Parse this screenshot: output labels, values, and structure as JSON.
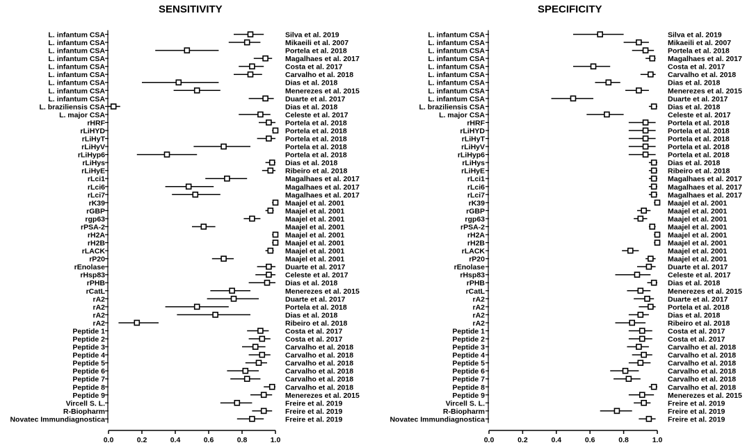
{
  "chart_data": [
    {
      "type": "forest",
      "title": "SENSITIVITY",
      "xlim": [
        0,
        1
      ],
      "xticks": [
        "0.0",
        "0.2",
        "0.4",
        "0.6",
        "0.8",
        "1.0"
      ],
      "rows": [
        {
          "label": "L. infantum CSA",
          "study": "Silva et al. 2019",
          "est": 0.85,
          "lo": 0.75,
          "hi": 0.93
        },
        {
          "label": "L. infantum CSA",
          "study": "Mikaeili et al. 2007",
          "est": 0.83,
          "lo": 0.72,
          "hi": 0.91
        },
        {
          "label": "L. infantum CSA",
          "study": "Portela et al. 2018",
          "est": 0.47,
          "lo": 0.28,
          "hi": 0.66
        },
        {
          "label": "L. infantum CSA",
          "study": "Magalhaes et al. 2017",
          "est": 0.94,
          "lo": 0.87,
          "hi": 0.98
        },
        {
          "label": "L. infantum CSA",
          "study": "Costa et al. 2017",
          "est": 0.86,
          "lo": 0.78,
          "hi": 0.93
        },
        {
          "label": "L. infantum CSA",
          "study": "Carvalho et al. 2018",
          "est": 0.85,
          "lo": 0.75,
          "hi": 0.92
        },
        {
          "label": "L. infantum CSA",
          "study": "Dias et al. 2018",
          "est": 0.42,
          "lo": 0.2,
          "hi": 0.66
        },
        {
          "label": "L. infantum CSA",
          "study": "Menerezes et al. 2015",
          "est": 0.53,
          "lo": 0.39,
          "hi": 0.67
        },
        {
          "label": "L. infantum CSA",
          "study": "Duarte et al. 2017",
          "est": 0.94,
          "lo": 0.84,
          "hi": 0.99
        },
        {
          "label": "L. braziliensis CSA",
          "study": "Dias et al. 2018",
          "est": 0.03,
          "lo": 0.0,
          "hi": 0.07
        },
        {
          "label": "L. major CSA",
          "study": "Celeste et al. 2017",
          "est": 0.91,
          "lo": 0.78,
          "hi": 0.97
        },
        {
          "label": "rHRF",
          "study": "Portela et al. 2018",
          "est": 0.96,
          "lo": 0.9,
          "hi": 1.0
        },
        {
          "label": "rLiHYD",
          "study": "Portela et al. 2018",
          "est": 1.0,
          "lo": 0.98,
          "hi": 1.0
        },
        {
          "label": "rLiHyT",
          "study": "Portela et al. 2018",
          "est": 0.96,
          "lo": 0.89,
          "hi": 1.0
        },
        {
          "label": "rLiHyV",
          "study": "Portela et al. 2018",
          "est": 0.69,
          "lo": 0.51,
          "hi": 0.85
        },
        {
          "label": "rLiHyp6",
          "study": "Portela et al. 2018",
          "est": 0.35,
          "lo": 0.17,
          "hi": 0.53
        },
        {
          "label": "rLiHys",
          "study": "Dias et al. 2018",
          "est": 0.98,
          "lo": 0.94,
          "hi": 1.0
        },
        {
          "label": "rLiHyE",
          "study": "Ribeiro et al. 2018",
          "est": 0.97,
          "lo": 0.92,
          "hi": 1.0
        },
        {
          "label": "rLci1",
          "study": "Magalhaes et al. 2017",
          "est": 0.71,
          "lo": 0.58,
          "hi": 0.83
        },
        {
          "label": "rLci6",
          "study": "Magalhaes et al. 2017",
          "est": 0.48,
          "lo": 0.34,
          "hi": 0.63
        },
        {
          "label": "rLci7",
          "study": "Magalhaes et al. 2017",
          "est": 0.52,
          "lo": 0.38,
          "hi": 0.67
        },
        {
          "label": "rK39",
          "study": "Maajel et al. 2001",
          "est": 1.0,
          "lo": 0.98,
          "hi": 1.0
        },
        {
          "label": "rGBP",
          "study": "Maajel et al. 2001",
          "est": 0.97,
          "lo": 0.94,
          "hi": 0.99
        },
        {
          "label": "rgp63",
          "study": "Maajel et al. 2001",
          "est": 0.86,
          "lo": 0.81,
          "hi": 0.91
        },
        {
          "label": "rPSA-2",
          "study": "Maajel et al. 2001",
          "est": 0.57,
          "lo": 0.5,
          "hi": 0.64
        },
        {
          "label": "rH2A",
          "study": "Maajel et al. 2001",
          "est": 1.0,
          "lo": 0.98,
          "hi": 1.0
        },
        {
          "label": "rH2B",
          "study": "Maajel et al. 2001",
          "est": 1.0,
          "lo": 0.98,
          "hi": 1.0
        },
        {
          "label": "rLACK",
          "study": "Maajel et al. 2001",
          "est": 0.97,
          "lo": 0.94,
          "hi": 0.99
        },
        {
          "label": "rP20",
          "study": "Maajel et al. 2001",
          "est": 0.69,
          "lo": 0.62,
          "hi": 0.75
        },
        {
          "label": "rEnolase",
          "study": "Duarte et al. 2017",
          "est": 0.96,
          "lo": 0.89,
          "hi": 1.0
        },
        {
          "label": "rHsp83",
          "study": "Celeste et al. 2017",
          "est": 0.96,
          "lo": 0.88,
          "hi": 1.0
        },
        {
          "label": "rPHB",
          "study": "Dias et al. 2018",
          "est": 0.95,
          "lo": 0.84,
          "hi": 1.0
        },
        {
          "label": "rCatL",
          "study": "Menerezes et al. 2015",
          "est": 0.74,
          "lo": 0.61,
          "hi": 0.85
        },
        {
          "label": "rA2",
          "study": "Duarte et al. 2017",
          "est": 0.75,
          "lo": 0.59,
          "hi": 0.9
        },
        {
          "label": "rA2",
          "study": "Portela et al. 2018",
          "est": 0.53,
          "lo": 0.34,
          "hi": 0.72
        },
        {
          "label": "rA2",
          "study": "Dias et al. 2018",
          "est": 0.64,
          "lo": 0.41,
          "hi": 0.85
        },
        {
          "label": "rA2",
          "study": "Ribeiro et al. 2018",
          "est": 0.17,
          "lo": 0.06,
          "hi": 0.3
        },
        {
          "label": "Peptide 1",
          "study": "Costa et al. 2017",
          "est": 0.91,
          "lo": 0.83,
          "hi": 0.96
        },
        {
          "label": "Peptide 2",
          "study": "Costa et al. 2017",
          "est": 0.92,
          "lo": 0.84,
          "hi": 0.97
        },
        {
          "label": "Peptide 3",
          "study": "Carvalho et al. 2018",
          "est": 0.88,
          "lo": 0.8,
          "hi": 0.94
        },
        {
          "label": "Peptide 4",
          "study": "Carvalho et al. 2018",
          "est": 0.92,
          "lo": 0.84,
          "hi": 0.97
        },
        {
          "label": "Peptide 5",
          "study": "Carvalho et al. 2018",
          "est": 0.9,
          "lo": 0.82,
          "hi": 0.95
        },
        {
          "label": "Peptide 6",
          "study": "Carvalho et al. 2018",
          "est": 0.82,
          "lo": 0.71,
          "hi": 0.9
        },
        {
          "label": "Peptide 7",
          "study": "Carvalho et al. 2018",
          "est": 0.83,
          "lo": 0.73,
          "hi": 0.91
        },
        {
          "label": "Peptide 8",
          "study": "Carvalho et al. 2018",
          "est": 0.98,
          "lo": 0.93,
          "hi": 1.0
        },
        {
          "label": "Peptide 9",
          "study": "Menerezes et al. 2015",
          "est": 0.93,
          "lo": 0.85,
          "hi": 0.98
        },
        {
          "label": "Vircell S. L.",
          "study": "Freire et al. 2019",
          "est": 0.77,
          "lo": 0.67,
          "hi": 0.86
        },
        {
          "label": "R-Biopharm",
          "study": "Freire et al. 2019",
          "est": 0.93,
          "lo": 0.86,
          "hi": 0.98
        },
        {
          "label": "Novatec Immundiagnostica",
          "study": "Freire et al. 2019",
          "est": 0.86,
          "lo": 0.77,
          "hi": 0.93
        }
      ]
    },
    {
      "type": "forest",
      "title": "SPECIFICITY",
      "xlim": [
        0,
        1
      ],
      "xticks": [
        "0.0",
        "0.2",
        "0.4",
        "0.6",
        "0.8",
        "1.0"
      ],
      "rows": [
        {
          "label": "L. infantum CSA",
          "study": "Silva et al. 2019",
          "est": 0.66,
          "lo": 0.5,
          "hi": 0.8
        },
        {
          "label": "L. infantum CSA",
          "study": "Mikaeili et al. 2007",
          "est": 0.89,
          "lo": 0.8,
          "hi": 0.95
        },
        {
          "label": "L. infantum CSA",
          "study": "Portela et al. 2018",
          "est": 0.93,
          "lo": 0.85,
          "hi": 0.98
        },
        {
          "label": "L. infantum CSA",
          "study": "Magalhaes et al. 2017",
          "est": 0.97,
          "lo": 0.93,
          "hi": 0.99
        },
        {
          "label": "L. infantum CSA",
          "study": "Costa et al. 2017",
          "est": 0.62,
          "lo": 0.5,
          "hi": 0.72
        },
        {
          "label": "L. infantum CSA",
          "study": "Carvalho et al. 2018",
          "est": 0.96,
          "lo": 0.9,
          "hi": 0.99
        },
        {
          "label": "L. infantum CSA",
          "study": "Dias et al. 2018",
          "est": 0.71,
          "lo": 0.63,
          "hi": 0.78
        },
        {
          "label": "L. infantum CSA",
          "study": "Menerezes et al. 2015",
          "est": 0.89,
          "lo": 0.81,
          "hi": 0.95
        },
        {
          "label": "L. infantum CSA",
          "study": "Duarte et al. 2017",
          "est": 0.5,
          "lo": 0.37,
          "hi": 0.62
        },
        {
          "label": "L. braziliensis CSA",
          "study": "Dias et al. 2018",
          "est": 0.98,
          "lo": 0.95,
          "hi": 1.0
        },
        {
          "label": "L. major CSA",
          "study": "Celeste et al. 2017",
          "est": 0.7,
          "lo": 0.58,
          "hi": 0.8
        },
        {
          "label": "rHRF",
          "study": "Portela et al. 2018",
          "est": 0.93,
          "lo": 0.83,
          "hi": 0.99
        },
        {
          "label": "rLiHYD",
          "study": "Portela et al. 2018",
          "est": 0.93,
          "lo": 0.83,
          "hi": 0.99
        },
        {
          "label": "rLiHyT",
          "study": "Portela et al. 2018",
          "est": 0.93,
          "lo": 0.83,
          "hi": 0.99
        },
        {
          "label": "rLiHyV",
          "study": "Portela et al. 2018",
          "est": 0.93,
          "lo": 0.83,
          "hi": 0.99
        },
        {
          "label": "rLiHyp6",
          "study": "Portela et al. 2018",
          "est": 0.93,
          "lo": 0.83,
          "hi": 0.99
        },
        {
          "label": "rLiHys",
          "study": "Dias et al. 2018",
          "est": 0.98,
          "lo": 0.95,
          "hi": 1.0
        },
        {
          "label": "rLiHyE",
          "study": "Ribeiro et al. 2018",
          "est": 0.98,
          "lo": 0.95,
          "hi": 1.0
        },
        {
          "label": "rLci1",
          "study": "Magalhaes et al. 2017",
          "est": 0.98,
          "lo": 0.95,
          "hi": 1.0
        },
        {
          "label": "rLci6",
          "study": "Magalhaes et al. 2017",
          "est": 0.98,
          "lo": 0.95,
          "hi": 1.0
        },
        {
          "label": "rLci7",
          "study": "Magalhaes et al. 2017",
          "est": 0.98,
          "lo": 0.95,
          "hi": 1.0
        },
        {
          "label": "rK39",
          "study": "Maajel et al. 2001",
          "est": 1.0,
          "lo": 0.98,
          "hi": 1.0
        },
        {
          "label": "rGBP",
          "study": "Maajel et al. 2001",
          "est": 0.92,
          "lo": 0.88,
          "hi": 0.96
        },
        {
          "label": "rgp63",
          "study": "Maajel et al. 2001",
          "est": 0.9,
          "lo": 0.86,
          "hi": 0.94
        },
        {
          "label": "rPSA-2",
          "study": "Maajel et al. 2001",
          "est": 0.97,
          "lo": 0.95,
          "hi": 0.99
        },
        {
          "label": "rH2A",
          "study": "Maajel et al. 2001",
          "est": 1.0,
          "lo": 0.98,
          "hi": 1.0
        },
        {
          "label": "rH2B",
          "study": "Maajel et al. 2001",
          "est": 1.0,
          "lo": 0.98,
          "hi": 1.0
        },
        {
          "label": "rLACK",
          "study": "Maajel et al. 2001",
          "est": 0.84,
          "lo": 0.79,
          "hi": 0.89
        },
        {
          "label": "rP20",
          "study": "Maajel et al. 2001",
          "est": 0.96,
          "lo": 0.93,
          "hi": 0.99
        },
        {
          "label": "rEnolase",
          "study": "Duarte et al. 2017",
          "est": 0.95,
          "lo": 0.88,
          "hi": 0.99
        },
        {
          "label": "rHsp83",
          "study": "Celeste et al. 2017",
          "est": 0.88,
          "lo": 0.75,
          "hi": 0.96
        },
        {
          "label": "rPHB",
          "study": "Dias et al. 2018",
          "est": 0.98,
          "lo": 0.94,
          "hi": 1.0
        },
        {
          "label": "rCatL",
          "study": "Menerezes et al. 2015",
          "est": 0.9,
          "lo": 0.82,
          "hi": 0.96
        },
        {
          "label": "rA2",
          "study": "Duarte et al. 2017",
          "est": 0.94,
          "lo": 0.86,
          "hi": 0.98
        },
        {
          "label": "rA2",
          "study": "Portela et al. 2018",
          "est": 0.96,
          "lo": 0.89,
          "hi": 0.99
        },
        {
          "label": "rA2",
          "study": "Dias et al. 2018",
          "est": 0.9,
          "lo": 0.83,
          "hi": 0.95
        },
        {
          "label": "rA2",
          "study": "Ribeiro et al. 2018",
          "est": 0.85,
          "lo": 0.75,
          "hi": 0.93
        },
        {
          "label": "Peptide 1",
          "study": "Costa et al. 2017",
          "est": 0.91,
          "lo": 0.83,
          "hi": 0.97
        },
        {
          "label": "Peptide 2",
          "study": "Costa et al. 2017",
          "est": 0.91,
          "lo": 0.83,
          "hi": 0.97
        },
        {
          "label": "Peptide 3",
          "study": "Carvalho et al. 2018",
          "est": 0.89,
          "lo": 0.82,
          "hi": 0.95
        },
        {
          "label": "Peptide 4",
          "study": "Carvalho et al. 2018",
          "est": 0.92,
          "lo": 0.85,
          "hi": 0.97
        },
        {
          "label": "Peptide 5",
          "study": "Carvalho et al. 2018",
          "est": 0.9,
          "lo": 0.83,
          "hi": 0.96
        },
        {
          "label": "Peptide 6",
          "study": "Carvalho et al. 2018",
          "est": 0.81,
          "lo": 0.72,
          "hi": 0.89
        },
        {
          "label": "Peptide 7",
          "study": "Carvalho et al. 2018",
          "est": 0.83,
          "lo": 0.74,
          "hi": 0.9
        },
        {
          "label": "Peptide 8",
          "study": "Carvalho et al. 2018",
          "est": 0.98,
          "lo": 0.95,
          "hi": 1.0
        },
        {
          "label": "Peptide 9",
          "study": "Menerezes et al. 2015",
          "est": 0.91,
          "lo": 0.83,
          "hi": 0.98
        },
        {
          "label": "Vircell S. L.",
          "study": "Freire et al. 2019",
          "est": 0.92,
          "lo": 0.86,
          "hi": 0.96
        },
        {
          "label": "R-Biopharm",
          "study": "Freire et al. 2019",
          "est": 0.76,
          "lo": 0.66,
          "hi": 0.85
        },
        {
          "label": "Novatec Immundiagnostica",
          "study": "Freire et al. 2019",
          "est": 0.95,
          "lo": 0.89,
          "hi": 0.99
        }
      ]
    }
  ]
}
